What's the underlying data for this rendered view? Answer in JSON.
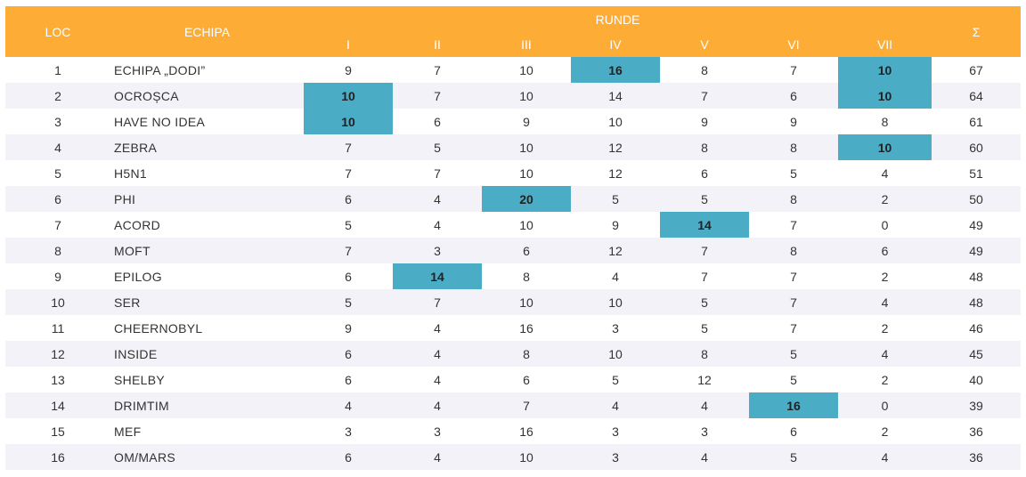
{
  "header": {
    "loc": "LOC",
    "team": "ECHIPA",
    "rounds_title": "RUNDE",
    "rounds": [
      "I",
      "II",
      "III",
      "IV",
      "V",
      "VI",
      "VII"
    ],
    "sum": "Σ"
  },
  "colors": {
    "header_bg": "#fdac35",
    "highlight": "#4bacc6",
    "stripe": "#f2f2f8"
  },
  "rows": [
    {
      "loc": "1",
      "team": "ECHIPA „DODI”",
      "scores": [
        "9",
        "7",
        "10",
        "16",
        "8",
        "7",
        "10"
      ],
      "highlight": [
        3,
        6
      ],
      "total": "67"
    },
    {
      "loc": "2",
      "team": "OCROȘCA",
      "scores": [
        "10",
        "7",
        "10",
        "14",
        "7",
        "6",
        "10"
      ],
      "highlight": [
        0,
        6
      ],
      "total": "64"
    },
    {
      "loc": "3",
      "team": "HAVE NO IDEA",
      "scores": [
        "10",
        "6",
        "9",
        "10",
        "9",
        "9",
        "8"
      ],
      "highlight": [
        0
      ],
      "total": "61"
    },
    {
      "loc": "4",
      "team": "ZEBRA",
      "scores": [
        "7",
        "5",
        "10",
        "12",
        "8",
        "8",
        "10"
      ],
      "highlight": [
        6
      ],
      "total": "60"
    },
    {
      "loc": "5",
      "team": "H5N1",
      "scores": [
        "7",
        "7",
        "10",
        "12",
        "6",
        "5",
        "4"
      ],
      "highlight": [],
      "total": "51"
    },
    {
      "loc": "6",
      "team": "PHI",
      "scores": [
        "6",
        "4",
        "20",
        "5",
        "5",
        "8",
        "2"
      ],
      "highlight": [
        2
      ],
      "total": "50"
    },
    {
      "loc": "7",
      "team": "ACORD",
      "scores": [
        "5",
        "4",
        "10",
        "9",
        "14",
        "7",
        "0"
      ],
      "highlight": [
        4
      ],
      "total": "49"
    },
    {
      "loc": "8",
      "team": "MOFT",
      "scores": [
        "7",
        "3",
        "6",
        "12",
        "7",
        "8",
        "6"
      ],
      "highlight": [],
      "total": "49"
    },
    {
      "loc": "9",
      "team": "EPILOG",
      "scores": [
        "6",
        "14",
        "8",
        "4",
        "7",
        "7",
        "2"
      ],
      "highlight": [
        1
      ],
      "total": "48"
    },
    {
      "loc": "10",
      "team": "SER",
      "scores": [
        "5",
        "7",
        "10",
        "10",
        "5",
        "7",
        "4"
      ],
      "highlight": [],
      "total": "48"
    },
    {
      "loc": "11",
      "team": "CHEERNOBYL",
      "scores": [
        "9",
        "4",
        "16",
        "3",
        "5",
        "7",
        "2"
      ],
      "highlight": [],
      "total": "46"
    },
    {
      "loc": "12",
      "team": "INSIDE",
      "scores": [
        "6",
        "4",
        "8",
        "10",
        "8",
        "5",
        "4"
      ],
      "highlight": [],
      "total": "45"
    },
    {
      "loc": "13",
      "team": "SHELBY",
      "scores": [
        "6",
        "4",
        "6",
        "5",
        "12",
        "5",
        "2"
      ],
      "highlight": [],
      "total": "40"
    },
    {
      "loc": "14",
      "team": "DRIMTIM",
      "scores": [
        "4",
        "4",
        "7",
        "4",
        "4",
        "16",
        "0"
      ],
      "highlight": [
        5
      ],
      "total": "39"
    },
    {
      "loc": "15",
      "team": "MEF",
      "scores": [
        "3",
        "3",
        "16",
        "3",
        "3",
        "6",
        "2"
      ],
      "highlight": [],
      "total": "36"
    },
    {
      "loc": "16",
      "team": "OM/MARS",
      "scores": [
        "6",
        "4",
        "10",
        "3",
        "4",
        "5",
        "4"
      ],
      "highlight": [],
      "total": "36"
    }
  ]
}
